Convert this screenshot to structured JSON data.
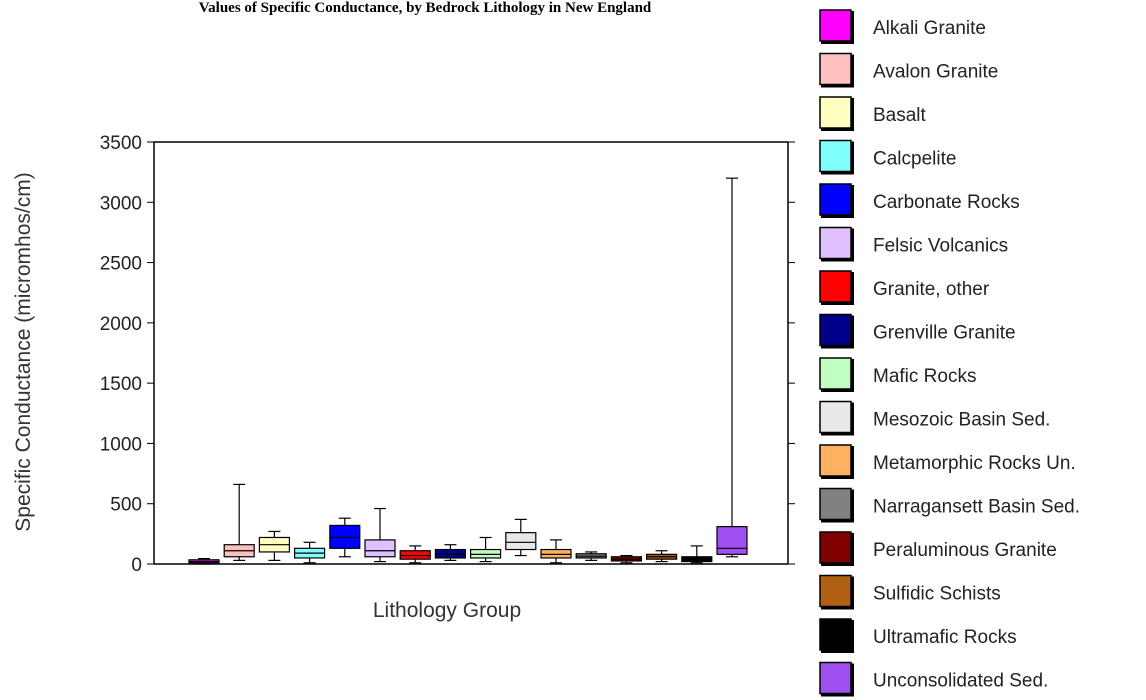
{
  "chart_data": {
    "type": "box",
    "title": "Values of Specific Conductance, by Bedrock Lithology in New England",
    "xlabel": "Lithology Group",
    "ylabel": "Specific Conductance (micromhos/cm)",
    "ylim": [
      0,
      3500
    ],
    "yticks": [
      0,
      500,
      1000,
      1500,
      2000,
      2500,
      3000,
      3500
    ],
    "legend_position": "right",
    "series": [
      {
        "name": "Alkali Granite",
        "color": "#ff00ff",
        "whisker_low": 0,
        "q1": 10,
        "median": 20,
        "q3": 35,
        "whisker_high": 45
      },
      {
        "name": "Avalon Granite",
        "color": "#ffc0c0",
        "whisker_low": 30,
        "q1": 60,
        "median": 110,
        "q3": 160,
        "whisker_high": 660
      },
      {
        "name": "Basalt",
        "color": "#ffffc0",
        "whisker_low": 30,
        "q1": 100,
        "median": 160,
        "q3": 220,
        "whisker_high": 270
      },
      {
        "name": "Calcpelite",
        "color": "#80ffff",
        "whisker_low": 10,
        "q1": 50,
        "median": 90,
        "q3": 130,
        "whisker_high": 180
      },
      {
        "name": "Carbonate Rocks",
        "color": "#0000ff",
        "whisker_low": 60,
        "q1": 130,
        "median": 220,
        "q3": 320,
        "whisker_high": 380
      },
      {
        "name": "Felsic Volcanics",
        "color": "#e0c0ff",
        "whisker_low": 20,
        "q1": 60,
        "median": 110,
        "q3": 200,
        "whisker_high": 460
      },
      {
        "name": "Granite, other",
        "color": "#ff0000",
        "whisker_low": 10,
        "q1": 40,
        "median": 70,
        "q3": 110,
        "whisker_high": 150
      },
      {
        "name": "Grenville Granite",
        "color": "#00008b",
        "whisker_low": 30,
        "q1": 50,
        "median": 80,
        "q3": 120,
        "whisker_high": 160
      },
      {
        "name": "Mafic Rocks",
        "color": "#c0ffc0",
        "whisker_low": 20,
        "q1": 50,
        "median": 80,
        "q3": 120,
        "whisker_high": 220
      },
      {
        "name": "Mesozoic Basin Sed.",
        "color": "#e8e8e8",
        "whisker_low": 70,
        "q1": 120,
        "median": 180,
        "q3": 260,
        "whisker_high": 370
      },
      {
        "name": "Metamorphic Rocks Un.",
        "color": "#ffb060",
        "whisker_low": 10,
        "q1": 50,
        "median": 80,
        "q3": 120,
        "whisker_high": 200
      },
      {
        "name": "Narragansett Basin Sed.",
        "color": "#808080",
        "whisker_low": 30,
        "q1": 50,
        "median": 65,
        "q3": 85,
        "whisker_high": 100
      },
      {
        "name": "Peraluminous Granite",
        "color": "#800000",
        "whisker_low": 10,
        "q1": 25,
        "median": 40,
        "q3": 60,
        "whisker_high": 70
      },
      {
        "name": "Sulfidic Schists",
        "color": "#b06010",
        "whisker_low": 20,
        "q1": 40,
        "median": 60,
        "q3": 80,
        "whisker_high": 110
      },
      {
        "name": "Ultramafic Rocks",
        "color": "#000000",
        "whisker_low": 10,
        "q1": 20,
        "median": 40,
        "q3": 60,
        "whisker_high": 150
      },
      {
        "name": "Unconsolidated Sed.",
        "color": "#a050f0",
        "whisker_low": 60,
        "q1": 80,
        "median": 130,
        "q3": 310,
        "whisker_high": 3200
      }
    ]
  }
}
